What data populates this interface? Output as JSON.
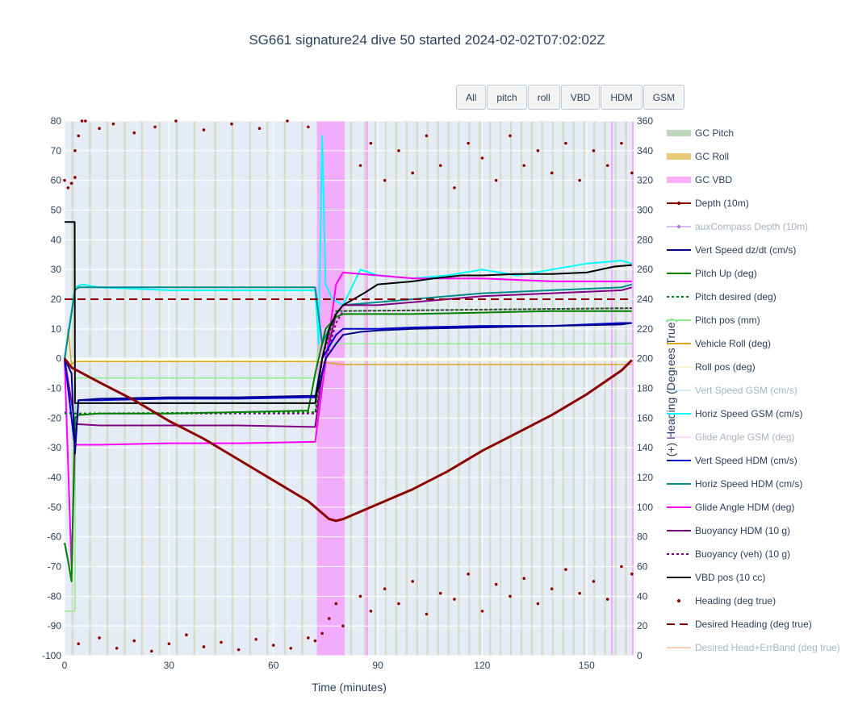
{
  "title": "SG661 signature24 dive 50 started 2024-02-02T07:02:02Z",
  "buttons": [
    "All",
    "pitch",
    "roll",
    "VBD",
    "HDM",
    "GSM"
  ],
  "colors": {
    "plot_bg": "#e5ecf6",
    "grid": "#ffffff",
    "depth": "#8b0000",
    "heading": "#8b0000",
    "vert_speed": "#00008b",
    "pitch_up": "#008000",
    "pitch_pos": "#90ee90",
    "vehicle_roll": "#daa520",
    "roll_pos": "#ffffe0",
    "horiz_speed_gsm": "#00ffff",
    "vert_speed_hdm": "#0000cd",
    "horiz_speed_hdm": "#008b8b",
    "glide_angle_hdm": "#ff00ff",
    "buoyancy": "#800080",
    "vbd_pos": "#000000",
    "gc_pitch": "#8fbc8f",
    "gc_roll": "#daa520",
    "gc_vbd": "#ff77ff"
  },
  "chart_data": {
    "type": "line",
    "xlabel": "Time (minutes)",
    "ylabel": "",
    "y2label": "(+) Heading (Degrees True)",
    "xlim": [
      0,
      163.5
    ],
    "ylim": [
      -100,
      80
    ],
    "y2lim": [
      0,
      360
    ],
    "xticks": [
      0,
      30,
      60,
      90,
      120,
      150
    ],
    "yticks": [
      80,
      70,
      60,
      50,
      40,
      30,
      20,
      10,
      0,
      -10,
      -20,
      -30,
      -40,
      -50,
      -60,
      -70,
      -80,
      -90,
      -100
    ],
    "y2ticks": [
      360,
      340,
      320,
      300,
      280,
      260,
      240,
      220,
      200,
      180,
      160,
      140,
      120,
      100,
      80,
      60,
      40,
      20,
      0
    ],
    "legend_position": "right",
    "legend": [
      {
        "name": "GC Pitch",
        "color": "#8fbc8f",
        "style": "band"
      },
      {
        "name": "GC Roll",
        "color": "#daa520",
        "style": "band"
      },
      {
        "name": "GC VBD",
        "color": "#ff77ff",
        "style": "band"
      },
      {
        "name": "Depth (10m)",
        "color": "#8b0000",
        "style": "line-marker"
      },
      {
        "name": "auxCompass Depth (10m)",
        "color": "#b57edc",
        "style": "line-marker",
        "hidden": true
      },
      {
        "name": "Vert Speed dz/dt (cm/s)",
        "color": "#00008b",
        "style": "line"
      },
      {
        "name": "Pitch Up (deg)",
        "color": "#008000",
        "style": "line"
      },
      {
        "name": "Pitch desired (deg)",
        "color": "#008000",
        "style": "dot"
      },
      {
        "name": "Pitch pos (mm)",
        "color": "#90ee90",
        "style": "line"
      },
      {
        "name": "Vehicle Roll (deg)",
        "color": "#daa520",
        "style": "line"
      },
      {
        "name": "Roll pos (deg)",
        "color": "#fafad2",
        "style": "line"
      },
      {
        "name": "Vert Speed GSM (cm/s)",
        "color": "#add8e6",
        "style": "line",
        "hidden": true
      },
      {
        "name": "Horiz Speed GSM (cm/s)",
        "color": "#00ffff",
        "style": "line"
      },
      {
        "name": "Glide Angle GSM (deg)",
        "color": "#ffb6ff",
        "style": "line",
        "hidden": true
      },
      {
        "name": "Vert Speed HDM (cm/s)",
        "color": "#0000cd",
        "style": "line"
      },
      {
        "name": "Horiz Speed HDM (cm/s)",
        "color": "#008b8b",
        "style": "line"
      },
      {
        "name": "Glide Angle HDM (deg)",
        "color": "#ff00ff",
        "style": "line"
      },
      {
        "name": "Buoyancy HDM (10 g)",
        "color": "#800080",
        "style": "line"
      },
      {
        "name": "Buoyancy (veh) (10 g)",
        "color": "#800080",
        "style": "dot"
      },
      {
        "name": "VBD pos (10 cc)",
        "color": "#000000",
        "style": "line"
      },
      {
        "name": "Heading (deg true)",
        "color": "#8b0000",
        "style": "marker"
      },
      {
        "name": "Desired Heading (deg true)",
        "color": "#8b0000",
        "style": "dash"
      },
      {
        "name": "Desired Head+ErrBand (deg true)",
        "color": "#f4a460",
        "style": "line",
        "hidden": true
      }
    ],
    "gc_bands": {
      "vbd": [
        [
          72.5,
          80.5
        ],
        [
          86.5,
          87.2
        ],
        [
          157.0,
          157.5
        ],
        [
          163.0,
          163.5
        ]
      ],
      "pitch_times": [
        2,
        7,
        12,
        17,
        22,
        27,
        32,
        37,
        43,
        48,
        53,
        58,
        63,
        68,
        82,
        86,
        89,
        92,
        95,
        98,
        101,
        104,
        107,
        110,
        113,
        116,
        119,
        122,
        125,
        128,
        131,
        134,
        137,
        140,
        143,
        146,
        149,
        152,
        155,
        158,
        161
      ]
    },
    "series": {
      "depth": {
        "x": [
          0,
          2,
          10,
          20,
          30,
          40,
          50,
          60,
          70,
          72,
          74,
          76,
          78,
          80,
          85,
          90,
          100,
          110,
          120,
          130,
          140,
          150,
          160,
          163
        ],
        "y": [
          0,
          -3,
          -8,
          -14,
          -21,
          -27,
          -34,
          -41,
          -48,
          -50,
          -52,
          -54,
          -54.6,
          -54,
          -51.5,
          -49,
          -44,
          -38,
          -31,
          -25,
          -19,
          -12,
          -4,
          -0.5
        ]
      },
      "vert_speed_dzdt": {
        "x": [
          0,
          2,
          3,
          4,
          10,
          30,
          50,
          72,
          73,
          75,
          78,
          80,
          85,
          90,
          100,
          120,
          140,
          160,
          163
        ],
        "y": [
          0,
          -5,
          -32,
          -14,
          -13.5,
          -13,
          -13,
          -12.5,
          -10,
          0,
          5,
          8,
          9,
          9.5,
          10,
          10.5,
          11,
          11.5,
          12
        ]
      },
      "pitch_up": {
        "x": [
          0,
          1,
          2,
          3,
          4,
          10,
          30,
          50,
          70,
          72,
          75,
          78,
          80,
          90,
          100,
          120,
          140,
          160,
          163
        ],
        "y": [
          -62,
          -68,
          -75,
          -20,
          -19,
          -18.5,
          -18.5,
          -18,
          -17.5,
          -5,
          10,
          14,
          15,
          15,
          15,
          15.5,
          16,
          16,
          16
        ]
      },
      "pitch_desired": {
        "x": [
          0,
          72,
          74,
          78,
          163
        ],
        "y": [
          -18.5,
          -18,
          0,
          16,
          17
        ]
      },
      "pitch_pos": {
        "x": [
          0,
          3,
          3.1,
          72,
          73,
          163
        ],
        "y": [
          -85,
          -85,
          -6.5,
          -6.5,
          5,
          5
        ]
      },
      "vehicle_roll": {
        "x": [
          0,
          1,
          2,
          3,
          72,
          80,
          163
        ],
        "y": [
          -3,
          10,
          -2,
          -1,
          -1,
          -2,
          -2
        ]
      },
      "roll_pos": {
        "x": [
          0,
          163
        ],
        "y": [
          -0.5,
          -0.5
        ]
      },
      "horiz_speed_gsm": {
        "x": [
          0,
          3,
          5,
          10,
          30,
          50,
          72,
          73,
          74,
          75,
          77,
          80,
          85,
          90,
          100,
          110,
          120,
          130,
          140,
          150,
          160,
          163
        ],
        "y": [
          0,
          24,
          25,
          24,
          23,
          23,
          23,
          5,
          75,
          25,
          20,
          18,
          30,
          28,
          27,
          28,
          30,
          28,
          30,
          32,
          33,
          32
        ]
      },
      "vert_speed_hdm": {
        "x": [
          0,
          3,
          4,
          10,
          30,
          50,
          72,
          74,
          78,
          80,
          90,
          100,
          120,
          140,
          160,
          163
        ],
        "y": [
          0,
          -30,
          -14,
          -14,
          -13.5,
          -13.5,
          -13,
          0,
          8,
          10,
          10,
          10.5,
          11,
          11,
          12,
          12
        ]
      },
      "horiz_speed_hdm": {
        "x": [
          0,
          3,
          4,
          10,
          30,
          50,
          72,
          74,
          78,
          80,
          90,
          100,
          120,
          140,
          160,
          163
        ],
        "y": [
          0,
          23,
          24,
          24,
          24,
          24,
          24,
          5,
          15,
          18,
          19,
          20,
          22,
          23,
          24,
          25
        ]
      },
      "glide_angle_hdm": {
        "x": [
          0,
          2,
          3,
          10,
          30,
          50,
          72,
          74,
          78,
          80,
          90,
          100,
          120,
          140,
          160,
          163
        ],
        "y": [
          0,
          -70,
          -29,
          -29,
          -28.5,
          -28.5,
          -28,
          -10,
          25,
          29,
          28,
          27,
          27,
          26,
          26,
          26
        ]
      },
      "buoyancy_hdm": {
        "x": [
          0,
          3,
          3.1,
          10,
          30,
          50,
          72,
          74,
          78,
          80,
          90,
          100,
          120,
          140,
          160,
          163
        ],
        "y": [
          0,
          -22,
          -22,
          -22.5,
          -22.5,
          -22.5,
          -23,
          -5,
          15,
          18,
          18,
          19,
          21,
          22,
          23,
          24
        ]
      },
      "buoyancy_veh": {
        "x": [
          0,
          3,
          72,
          74,
          78,
          80,
          163
        ],
        "y": [
          -18,
          -18.5,
          -18.5,
          -5,
          12,
          16,
          17
        ]
      },
      "vbd_pos": {
        "x": [
          0,
          2.9,
          3,
          72,
          74,
          75,
          76,
          78,
          80,
          86,
          90,
          100,
          106,
          114,
          120,
          130,
          140,
          150,
          158,
          163
        ],
        "y": [
          46,
          46,
          -15,
          -15,
          0,
          5,
          10,
          15,
          18,
          22,
          25,
          26,
          27,
          28,
          28,
          28.5,
          28.5,
          29,
          31,
          31.5
        ]
      },
      "desired_heading": {
        "x": [
          0,
          163
        ],
        "y2": [
          240,
          240
        ]
      },
      "heading_clusters": [
        {
          "x": [
            0,
            1,
            2,
            3
          ],
          "y2": [
            320,
            315,
            318,
            322
          ]
        },
        {
          "x": [
            3,
            4,
            5
          ],
          "y2": [
            340,
            350,
            360
          ]
        },
        {
          "x": [
            6,
            10,
            14,
            20,
            26,
            32,
            40,
            48,
            56,
            64,
            70
          ],
          "y2": [
            360,
            355,
            358,
            352,
            356,
            360,
            354,
            358,
            355,
            360,
            356
          ]
        },
        {
          "x": [
            4,
            10,
            15,
            20,
            25,
            30,
            35,
            40,
            45,
            50,
            55,
            60,
            65,
            70
          ],
          "y2": [
            8,
            12,
            5,
            10,
            3,
            8,
            14,
            6,
            9,
            4,
            11,
            7,
            5,
            12
          ]
        },
        {
          "x": [
            72,
            74,
            76,
            78,
            80
          ],
          "y2": [
            10,
            15,
            25,
            35,
            20
          ]
        },
        {
          "x": [
            85,
            88,
            92,
            96,
            100,
            104,
            108,
            112,
            116,
            120,
            124,
            128,
            132,
            136,
            140,
            144,
            148,
            152,
            156,
            160,
            163
          ],
          "y2": [
            40,
            30,
            45,
            35,
            50,
            28,
            42,
            38,
            55,
            30,
            48,
            40,
            52,
            35,
            45,
            58,
            42,
            50,
            38,
            60,
            55
          ]
        },
        {
          "x": [
            85,
            88,
            92,
            96,
            100,
            104,
            108,
            112,
            116,
            120,
            124,
            128,
            132,
            136,
            140,
            144,
            148,
            152,
            156,
            160,
            163
          ],
          "y2": [
            330,
            345,
            320,
            340,
            325,
            350,
            330,
            315,
            345,
            335,
            320,
            350,
            330,
            340,
            325,
            345,
            320,
            340,
            330,
            345,
            325
          ]
        }
      ]
    }
  }
}
